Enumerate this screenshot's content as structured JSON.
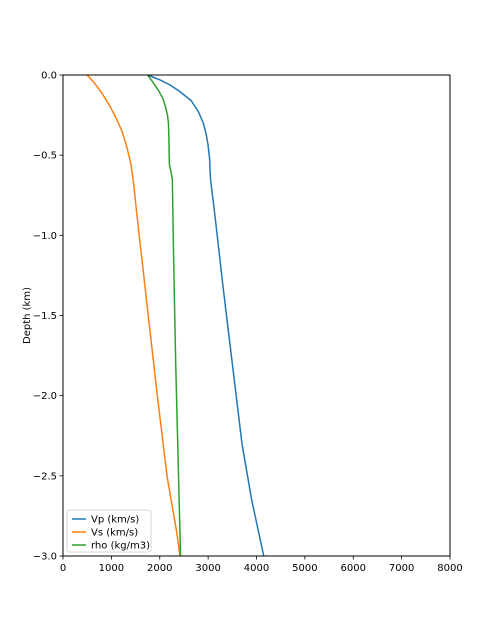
{
  "chart_data": {
    "type": "line",
    "title": "",
    "xlabel": "",
    "ylabel": "Depth (km)",
    "xlim": [
      0,
      8000
    ],
    "ylim": [
      -3.0,
      0.0
    ],
    "xticks": [
      0,
      1000,
      2000,
      3000,
      4000,
      5000,
      6000,
      7000,
      8000
    ],
    "yticks": [
      0.0,
      -0.5,
      -1.0,
      -1.5,
      -2.0,
      -2.5,
      -3.0
    ],
    "xtick_labels": [
      "0",
      "1000",
      "2000",
      "3000",
      "4000",
      "5000",
      "6000",
      "7000",
      "8000"
    ],
    "ytick_labels": [
      "0.0",
      "−0.5",
      "−1.0",
      "−1.5",
      "−2.0",
      "−2.5",
      "−3.0"
    ],
    "grid": false,
    "legend_position": "lower-left",
    "series": [
      {
        "name": "Vp (km/s)",
        "color": "#1f77b4",
        "points": [
          [
            1750,
            0.0
          ],
          [
            2000,
            -0.03
          ],
          [
            2200,
            -0.06
          ],
          [
            2400,
            -0.1
          ],
          [
            2650,
            -0.16
          ],
          [
            2800,
            -0.23
          ],
          [
            2900,
            -0.3
          ],
          [
            2960,
            -0.37
          ],
          [
            3000,
            -0.44
          ],
          [
            3030,
            -0.52
          ],
          [
            3040,
            -0.6
          ],
          [
            3050,
            -0.65
          ],
          [
            3150,
            -0.9
          ],
          [
            3300,
            -1.3
          ],
          [
            3500,
            -1.8
          ],
          [
            3700,
            -2.3
          ],
          [
            3900,
            -2.65
          ],
          [
            4150,
            -3.0
          ]
        ]
      },
      {
        "name": "Vs (km/s)",
        "color": "#ff7f0e",
        "points": [
          [
            500,
            0.0
          ],
          [
            650,
            -0.05
          ],
          [
            820,
            -0.12
          ],
          [
            980,
            -0.2
          ],
          [
            1100,
            -0.27
          ],
          [
            1220,
            -0.35
          ],
          [
            1320,
            -0.45
          ],
          [
            1400,
            -0.55
          ],
          [
            1450,
            -0.65
          ],
          [
            1520,
            -0.85
          ],
          [
            1650,
            -1.2
          ],
          [
            1800,
            -1.6
          ],
          [
            1950,
            -2.0
          ],
          [
            2150,
            -2.5
          ],
          [
            2350,
            -2.85
          ],
          [
            2420,
            -3.0
          ]
        ]
      },
      {
        "name": "rho (kg/m3)",
        "color": "#2ca02c",
        "points": [
          [
            1750,
            0.0
          ],
          [
            1870,
            -0.05
          ],
          [
            1980,
            -0.1
          ],
          [
            2070,
            -0.15
          ],
          [
            2120,
            -0.2
          ],
          [
            2160,
            -0.25
          ],
          [
            2180,
            -0.3
          ],
          [
            2190,
            -0.4
          ],
          [
            2195,
            -0.5
          ],
          [
            2200,
            -0.56
          ],
          [
            2230,
            -0.6
          ],
          [
            2260,
            -0.65
          ],
          [
            2290,
            -1.2
          ],
          [
            2330,
            -1.8
          ],
          [
            2380,
            -2.4
          ],
          [
            2430,
            -3.0
          ]
        ]
      }
    ]
  }
}
